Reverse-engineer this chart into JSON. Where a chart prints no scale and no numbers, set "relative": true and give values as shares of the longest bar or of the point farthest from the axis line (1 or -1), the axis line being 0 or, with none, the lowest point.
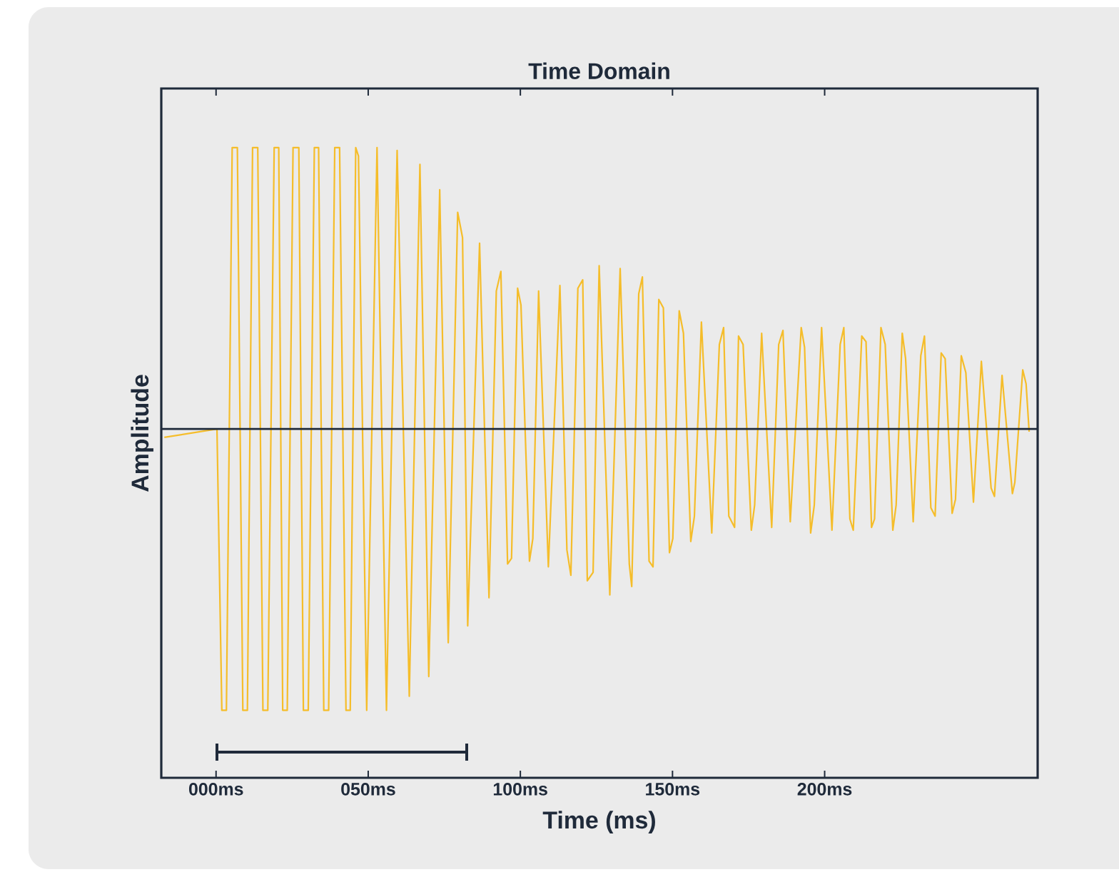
{
  "chart_data": {
    "type": "line",
    "title": "Time Domain",
    "xlabel": "Time (ms)",
    "ylabel": "Amplitude",
    "relative": true,
    "xlim": [
      -18,
      270
    ],
    "xticks": [
      {
        "value": 0,
        "label": "000ms"
      },
      {
        "value": 50,
        "label": "050ms"
      },
      {
        "value": 100,
        "label": "100ms"
      },
      {
        "value": 150,
        "label": "150ms"
      },
      {
        "value": 200,
        "label": "200ms"
      }
    ],
    "x": [
      -17,
      0.3,
      1.9,
      3.4,
      5.3,
      7.0,
      8.8,
      10.3,
      12.0,
      13.7,
      15.4,
      17.0,
      19.1,
      20.6,
      21.9,
      23.4,
      25.3,
      27.2,
      28.7,
      30.3,
      32.3,
      33.7,
      35.4,
      37.0,
      39.0,
      40.6,
      42.7,
      44.1,
      45.9,
      46.8,
      49.5,
      52.9,
      56.0,
      59.5,
      63.5,
      67.0,
      69.9,
      73.5,
      76.3,
      79.4,
      81.0,
      82.7,
      86.6,
      89.7,
      92.1,
      93.6,
      95.8,
      97.1,
      99.1,
      100.2,
      103.0,
      104.1,
      106.0,
      109.2,
      113.0,
      115.3,
      116.6,
      118.9,
      120.5,
      122.0,
      123.9,
      125.9,
      129.4,
      132.8,
      135.8,
      136.6,
      138.9,
      140.1,
      142.3,
      143.6,
      145.5,
      147.0,
      149.0,
      150.1,
      152.2,
      153.6,
      156.0,
      157.2,
      159.5,
      162.9,
      165.4,
      166.8,
      168.5,
      170.4,
      171.7,
      173.2,
      175.9,
      177.0,
      179.3,
      182.6,
      184.9,
      186.3,
      188.7,
      192.3,
      193.4,
      195.4,
      196.6,
      199.0,
      202.4,
      205.1,
      206.3,
      208.3,
      209.4,
      212.2,
      213.6,
      215.4,
      216.4,
      218.5,
      219.9,
      222.4,
      223.5,
      225.5,
      226.6,
      229.1,
      231.6,
      232.8,
      234.9,
      236.3,
      238.3,
      239.6,
      241.9,
      243.0,
      244.9,
      246.4,
      248.9,
      251.5,
      254.7,
      255.8,
      258.3,
      261.7,
      262.5,
      265.1,
      266.2,
      267.2
    ],
    "series": [
      {
        "color": "#f5bd2a",
        "values": [
          -0.03,
          0,
          -1,
          -1,
          1,
          1,
          -1,
          -1,
          1,
          1,
          -1,
          -1,
          1,
          1,
          -1,
          -1,
          1,
          1,
          -1,
          -1,
          1,
          1,
          -1,
          -1,
          1,
          1,
          -1,
          -1,
          1,
          0.97,
          -1,
          1,
          -1,
          0.99,
          -0.95,
          0.94,
          -0.88,
          0.85,
          -0.76,
          0.77,
          0.68,
          -0.7,
          0.66,
          -0.6,
          0.49,
          0.56,
          -0.48,
          -0.46,
          0.5,
          0.44,
          -0.47,
          -0.39,
          0.49,
          -0.49,
          0.51,
          -0.43,
          -0.52,
          0.5,
          0.53,
          -0.54,
          -0.51,
          0.58,
          -0.59,
          0.57,
          -0.48,
          -0.56,
          0.48,
          0.54,
          -0.47,
          -0.49,
          0.46,
          0.43,
          -0.44,
          -0.39,
          0.42,
          0.34,
          -0.4,
          -0.31,
          0.38,
          -0.37,
          0.3,
          0.36,
          -0.31,
          -0.35,
          0.33,
          0.3,
          -0.36,
          -0.27,
          0.34,
          -0.35,
          0.3,
          0.35,
          -0.33,
          0.36,
          0.29,
          -0.37,
          -0.27,
          0.36,
          -0.36,
          0.3,
          0.36,
          -0.32,
          -0.36,
          0.33,
          0.31,
          -0.35,
          -0.32,
          0.36,
          0.3,
          -0.36,
          -0.27,
          0.34,
          0.25,
          -0.33,
          0.26,
          0.33,
          -0.28,
          -0.31,
          0.27,
          0.25,
          -0.3,
          -0.25,
          0.26,
          0.2,
          -0.26,
          0.24,
          -0.21,
          -0.24,
          0.19,
          -0.23,
          -0.19,
          0.21,
          0.16,
          -0.01
        ]
      }
    ]
  }
}
